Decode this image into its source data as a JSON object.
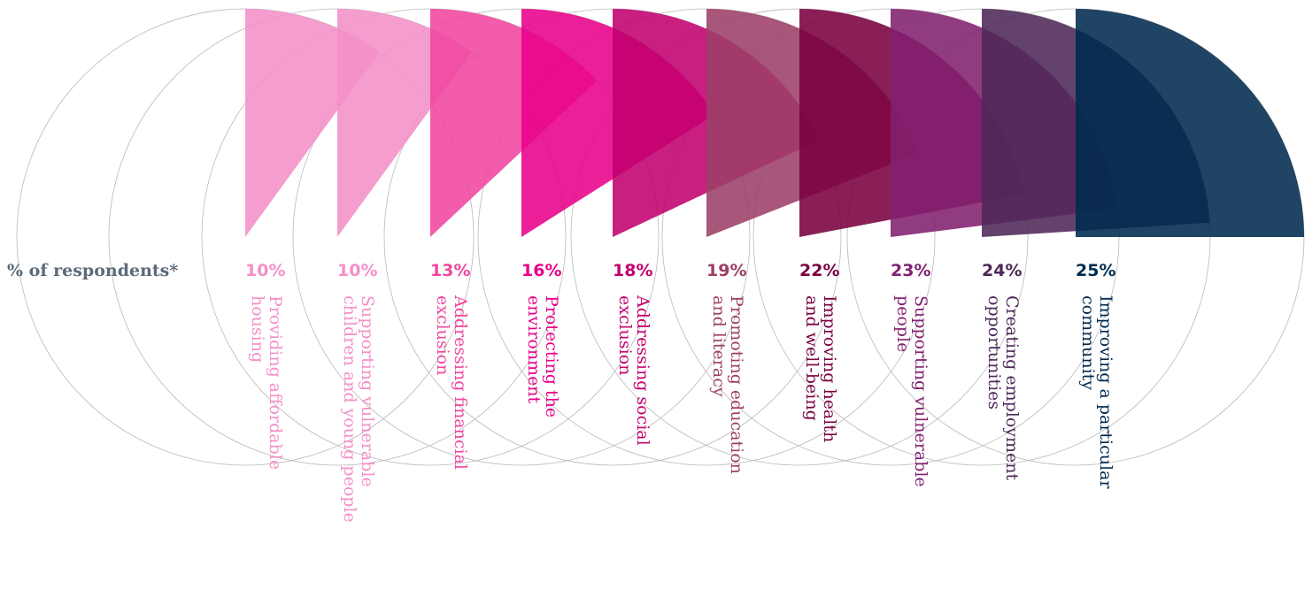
{
  "chart_data": {
    "type": "radial-sector",
    "ylabel": "% of respondents*",
    "unit": "%",
    "categories": [
      "Providing affordable housing",
      "Supporting vulnerable children and young people",
      "Addressing financial exclusion",
      "Protecting the environment",
      "Addressing social exclusion",
      "Promoting education and literacy",
      "Improving health and well-being",
      "Supporting vulnerable people",
      "Creating employment opportunities",
      "Improving a particular community"
    ],
    "values": [
      10,
      10,
      13,
      16,
      18,
      19,
      22,
      23,
      24,
      25
    ],
    "value_labels": [
      "10%",
      "10%",
      "13%",
      "16%",
      "18%",
      "19%",
      "22%",
      "23%",
      "24%",
      "25%"
    ],
    "label_lines": [
      [
        "Providing affordable",
        "housing"
      ],
      [
        "Supporting vulnerable",
        "children and young people"
      ],
      [
        "Addressing financial",
        "exclusion"
      ],
      [
        "Protecting the",
        "environment"
      ],
      [
        "Addressing social",
        "exclusion"
      ],
      [
        "Promoting education",
        "and literacy"
      ],
      [
        "Improving health",
        "and well-being"
      ],
      [
        "Supporting vulnerable",
        "people"
      ],
      [
        "Creating employment",
        "opportunities"
      ],
      [
        "Improving a particular",
        "community"
      ]
    ],
    "colors": [
      "#f48fc8",
      "#f48fc8",
      "#f0469f",
      "#e8008a",
      "#c2006e",
      "#9c3f67",
      "#7a0040",
      "#82206f",
      "#4d2858",
      "#002a4e"
    ],
    "grid": false,
    "legend": "none"
  }
}
